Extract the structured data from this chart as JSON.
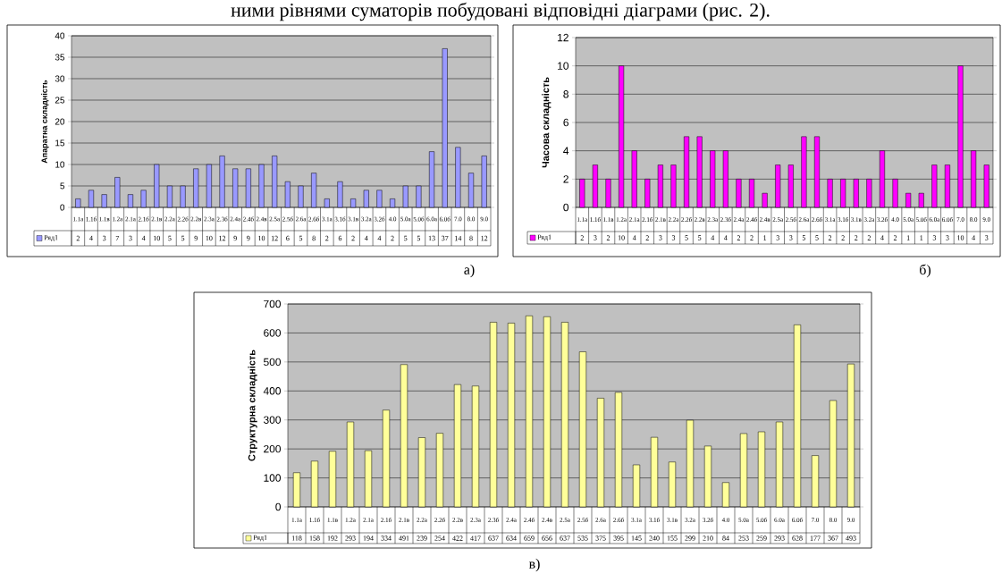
{
  "chart_data": [
    {
      "type": "bar",
      "ylabel": "Апаратна складність",
      "annotations": [
        "ними рівнями суматорів побудовані відповідні діаграми (рис. 2).",
        "а)"
      ],
      "categories": [
        "1.1а",
        "1.1б",
        "1.1в",
        "1.2а",
        "2.1а",
        "2.1б",
        "2.1в",
        "2.2а",
        "2.2б",
        "2.2в",
        "2.3а",
        "2.3б",
        "2.4а",
        "2.4б",
        "2.4в",
        "2.5а",
        "2.5б",
        "2.6а",
        "2.6б",
        "3.1а",
        "3.1б",
        "3.1в",
        "3.2а",
        "3.2б",
        "4.0",
        "5.0а",
        "5.0б",
        "6.0а",
        "6.0б",
        "7.0",
        "8.0",
        "9.0"
      ],
      "series": [
        {
          "name": "Ряд1",
          "color": "#9999ff",
          "values": [
            2,
            4,
            3,
            7,
            3,
            4,
            10,
            5,
            5,
            9,
            10,
            12,
            9,
            9,
            10,
            12,
            6,
            5,
            8,
            2,
            6,
            2,
            4,
            4,
            2,
            5,
            5,
            13,
            37,
            14,
            8,
            12
          ]
        }
      ],
      "ylim": [
        0,
        40
      ],
      "yticks": [
        0,
        5,
        10,
        15,
        20,
        25,
        30,
        35,
        40
      ],
      "grid": "y",
      "legend": "bottom left",
      "data_labels": true
    },
    {
      "type": "bar",
      "ylabel": "Часова складність",
      "annotations": [
        "б)"
      ],
      "categories": [
        "1.1а",
        "1.1б",
        "1.1в",
        "1.2а",
        "2.1а",
        "2.1б",
        "2.1в",
        "2.2а",
        "2.2б",
        "2.2в",
        "2.3а",
        "2.3б",
        "2.4а",
        "2.4б",
        "2.4в",
        "2.5а",
        "2.5б",
        "2.6а",
        "2.6б",
        "3.1а",
        "3.1б",
        "3.1в",
        "3.2а",
        "3.2б",
        "4.0",
        "5.0а",
        "5.0б",
        "6.0а",
        "6.0б",
        "7.0",
        "8.0",
        "9.0"
      ],
      "series": [
        {
          "name": "Ряд1",
          "color": "#ff00ff",
          "values": [
            2,
            3,
            2,
            10,
            4,
            2,
            3,
            3,
            5,
            5,
            4,
            4,
            2,
            2,
            1,
            3,
            3,
            5,
            5,
            2,
            2,
            2,
            2,
            4,
            2,
            1,
            1,
            3,
            3,
            10,
            4,
            3
          ]
        }
      ],
      "ylim": [
        0,
        12
      ],
      "yticks": [
        0,
        2,
        4,
        6,
        8,
        10,
        12
      ],
      "grid": "y",
      "legend": "bottom left",
      "data_labels": true
    },
    {
      "type": "bar",
      "ylabel": "Структурна складність",
      "annotations": [
        "в)"
      ],
      "categories": [
        "1.1а",
        "1.1б",
        "1.1в",
        "1.2а",
        "2.1а",
        "2.1б",
        "2.1в",
        "2.2а",
        "2.2б",
        "2.2в",
        "2.3а",
        "2.3б",
        "2.4а",
        "2.4б",
        "2.4в",
        "2.5а",
        "2.5б",
        "2.6а",
        "2.6б",
        "3.1а",
        "3.1б",
        "3.1в",
        "3.2а",
        "3.2б",
        "4.0",
        "5.0а",
        "5.0б",
        "6.0а",
        "6.0б",
        "7.0",
        "8.0",
        "9.0"
      ],
      "series": [
        {
          "name": "Ряд1",
          "color": "#ffff99",
          "values": [
            118,
            158,
            192,
            293,
            194,
            334,
            491,
            239,
            254,
            422,
            417,
            637,
            634,
            659,
            656,
            637,
            535,
            375,
            395,
            145,
            240,
            155,
            299,
            210,
            84,
            253,
            259,
            293,
            628,
            177,
            367,
            493
          ]
        }
      ],
      "ylim": [
        0,
        700
      ],
      "yticks": [
        0,
        100,
        200,
        300,
        400,
        500,
        600,
        700
      ],
      "grid": "y",
      "legend": "bottom left",
      "data_labels": true
    }
  ]
}
